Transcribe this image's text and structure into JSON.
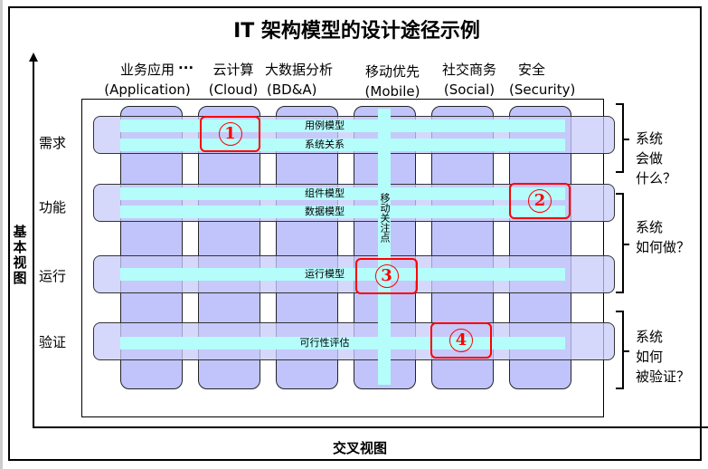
{
  "title": "IT 架构模型的设计途径示例",
  "columns": [
    {
      "zh": "业务应用",
      "en": "(Application)"
    },
    {
      "zh": "云计算",
      "en": "(Cloud)"
    },
    {
      "zh": "大数据分析",
      "en": "(BD&A)"
    },
    {
      "zh": "移动优先",
      "en": "(Mobile)"
    },
    {
      "zh": "社交商务",
      "en": "(Social)"
    },
    {
      "zh": "安全",
      "en": "(Security)"
    }
  ],
  "ellipsis": "···",
  "rows": [
    "需求",
    "功能",
    "运行",
    "验证"
  ],
  "bars": [
    "用例模型",
    "系统关系",
    "组件模型",
    "数据模型",
    "运行模型",
    "可行性评估"
  ],
  "vertical_bar": "移动关注点",
  "markers": [
    "1",
    "2",
    "3",
    "4"
  ],
  "questions": [
    [
      "系统",
      "会做",
      "什么？"
    ],
    [
      "系统",
      "如何做？"
    ],
    [
      "系统",
      "如何",
      "被验证？"
    ]
  ],
  "y_axis_label": "基本视图",
  "x_axis_label": "交叉视图",
  "colors": {
    "column": "#c0c4fa",
    "bar": "#b4fdfb",
    "marker": "#ff0000"
  }
}
